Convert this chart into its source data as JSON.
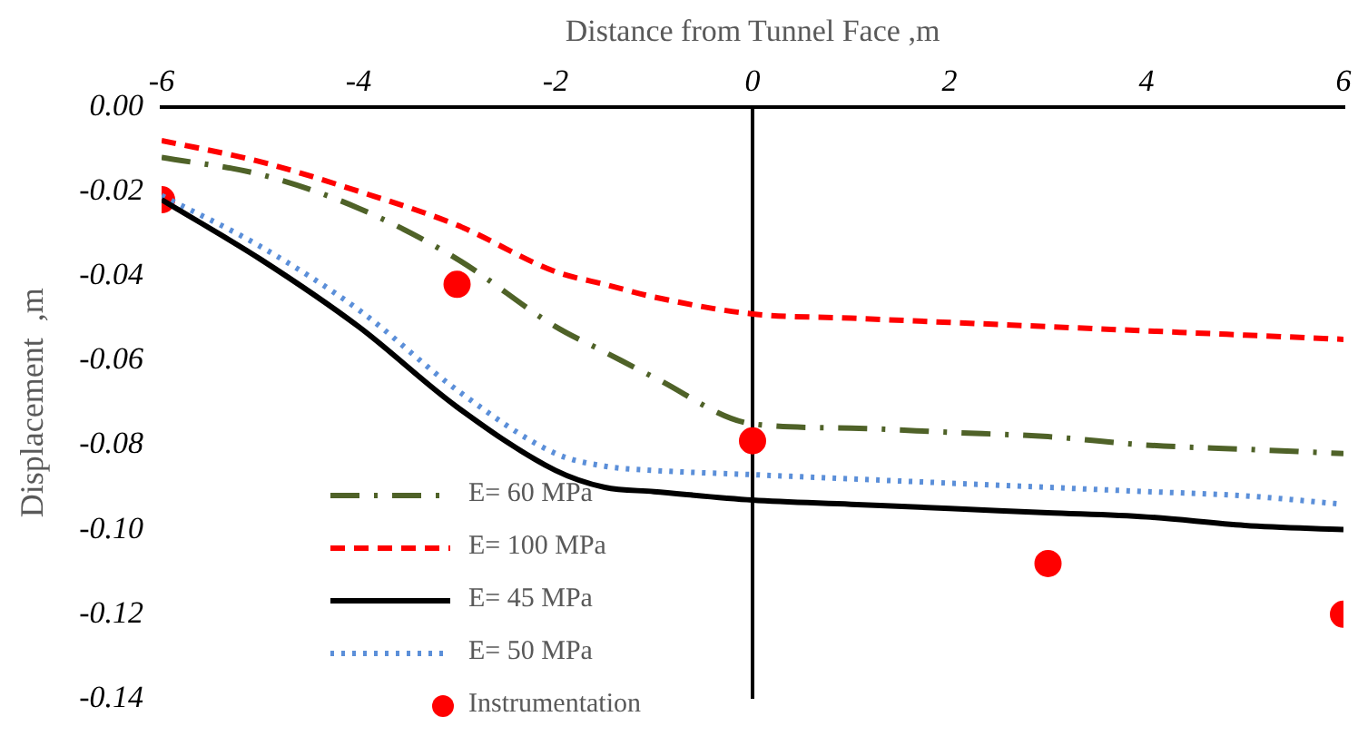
{
  "chart_data": {
    "type": "line",
    "xlabel": "Distance from Tunnel Face ,m",
    "ylabel": "Displacement  ,m",
    "x": [
      -6,
      -5,
      -4,
      -3,
      -2,
      -1.5,
      -1,
      0,
      1,
      2,
      3,
      4,
      5,
      6
    ],
    "xlim": [
      -6,
      6
    ],
    "xticks": [
      -6,
      -4,
      -2,
      0,
      2,
      4,
      6
    ],
    "ylim": [
      -0.14,
      0
    ],
    "yticks": [
      {
        "value": 0,
        "label": "0.00"
      },
      -0.02,
      -0.04,
      -0.06,
      -0.08,
      {
        "value": -0.1,
        "label": "-0.10"
      },
      -0.12,
      -0.14
    ],
    "legend": "bottom left",
    "marker": "none",
    "series": [
      {
        "name": "E= 60 MPa",
        "color": "#4f6228",
        "line_style": "dashdot",
        "values": [
          -0.012,
          -0.016,
          -0.024,
          -0.036,
          -0.052,
          -0.058,
          -0.064,
          -0.075,
          -0.076,
          -0.077,
          -0.078,
          -0.08,
          -0.081,
          -0.082
        ]
      },
      {
        "name": "E= 100 MPa",
        "color": "#ff0000",
        "line_style": "dashed",
        "values": [
          -0.008,
          -0.013,
          -0.02,
          -0.028,
          -0.039,
          -0.042,
          -0.045,
          -0.049,
          -0.05,
          -0.051,
          -0.052,
          -0.053,
          -0.054,
          -0.055
        ]
      },
      {
        "name": "E= 45 MPa",
        "color": "#000000",
        "line_style": "solid",
        "values": [
          -0.022,
          -0.036,
          -0.052,
          -0.071,
          -0.086,
          -0.09,
          -0.091,
          -0.093,
          -0.094,
          -0.095,
          -0.096,
          -0.097,
          -0.099,
          -0.1
        ]
      },
      {
        "name": "E= 50 MPa",
        "color": "#5b8fd9",
        "line_style": "dotted",
        "values": [
          -0.021,
          -0.033,
          -0.048,
          -0.067,
          -0.082,
          -0.085,
          -0.086,
          -0.087,
          -0.088,
          -0.089,
          -0.09,
          -0.091,
          -0.092,
          -0.094
        ]
      },
      {
        "name": "Instrumentation",
        "type": "scatter",
        "marker": "circle",
        "color": "#ff0000",
        "x": [
          -6,
          -3,
          0,
          3,
          6
        ],
        "values": [
          -0.022,
          -0.042,
          -0.079,
          -0.108,
          -0.12
        ]
      }
    ]
  }
}
